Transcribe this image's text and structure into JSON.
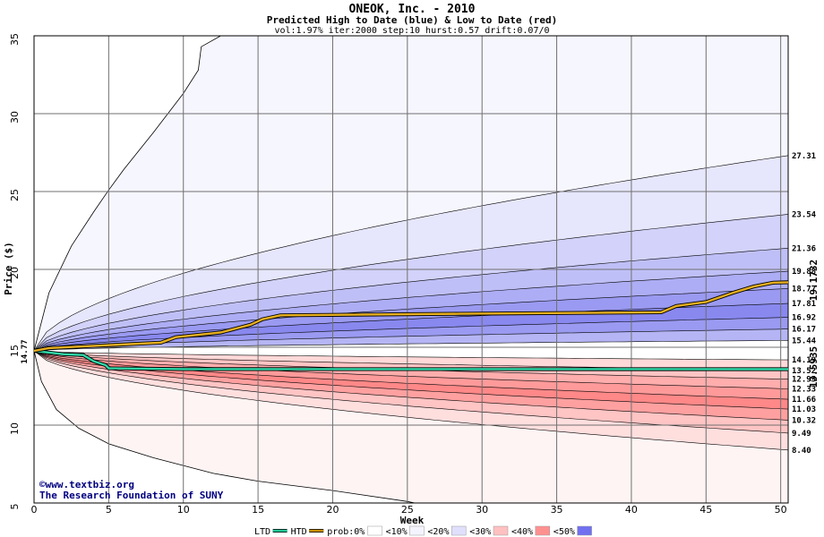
{
  "chart_data": {
    "type": "area",
    "title": "ONEOK, Inc. - 2010",
    "subtitle": "Predicted High to Date (blue) &  Low to Date (red)",
    "params": "vol:1.97% iter:2000 step:10 hurst:0.57 drift:0.07/0",
    "xlabel": "Week",
    "ylabel": "Price ($)",
    "xlim": [
      0,
      50.5
    ],
    "ylim": [
      5,
      35
    ],
    "x_ticks": [
      0,
      5,
      10,
      15,
      20,
      25,
      30,
      35,
      40,
      45,
      50
    ],
    "y_ticks": [
      5,
      10,
      15,
      20,
      25,
      30,
      35
    ],
    "grid": true,
    "start_price": 14.77,
    "start_label": "14.77",
    "htd_final": 19.1732,
    "htd_final_label": "19.1732",
    "ltd_final": 13.5935,
    "ltd_final_label": "13.5935",
    "end_week": 50.5,
    "upper_bands": [
      27.31,
      23.54,
      21.36,
      19.88,
      18.77,
      17.81,
      16.92,
      16.17,
      15.44
    ],
    "lower_bands": [
      14.19,
      13.52,
      12.95,
      12.33,
      11.66,
      11.03,
      10.32,
      9.49,
      8.4
    ],
    "band_labels": [
      "27.31",
      "23.54",
      "21.36",
      "19.88",
      "18.77",
      "17.81",
      "16.92",
      "16.17",
      "15.44",
      "14.19",
      "13.52",
      "12.95",
      "12.33",
      "11.66",
      "11.03",
      "10.32",
      "9.49",
      "8.40"
    ],
    "envelope_upper": [
      [
        0,
        14.77
      ],
      [
        1,
        18.5
      ],
      [
        2.5,
        21.5
      ],
      [
        4,
        23.7
      ],
      [
        5,
        25.1
      ],
      [
        6,
        26.4
      ],
      [
        8,
        28.8
      ],
      [
        10,
        31.3
      ],
      [
        11,
        32.8
      ],
      [
        11.2,
        34.3
      ],
      [
        12.5,
        35
      ]
    ],
    "envelope_lower": [
      [
        0,
        14.77
      ],
      [
        0.5,
        12.8
      ],
      [
        1.5,
        11
      ],
      [
        3,
        9.8
      ],
      [
        5,
        8.8
      ],
      [
        8,
        7.9
      ],
      [
        12,
        6.9
      ],
      [
        15,
        6.4
      ],
      [
        20,
        5.8
      ],
      [
        25,
        5.1
      ],
      [
        25.5,
        5
      ]
    ],
    "htd_path": [
      [
        0,
        14.77
      ],
      [
        1,
        14.95
      ],
      [
        8.5,
        15.3
      ],
      [
        9.5,
        15.65
      ],
      [
        12.5,
        15.95
      ],
      [
        14.5,
        16.45
      ],
      [
        15.3,
        16.8
      ],
      [
        16.5,
        17.05
      ],
      [
        28.5,
        17.15
      ],
      [
        42,
        17.25
      ],
      [
        43,
        17.65
      ],
      [
        45,
        17.9
      ],
      [
        46.8,
        18.5
      ],
      [
        48.2,
        18.9
      ],
      [
        49.5,
        19.15
      ],
      [
        50.5,
        19.1732
      ]
    ],
    "ltd_path": [
      [
        0,
        14.77
      ],
      [
        2,
        14.55
      ],
      [
        3.3,
        14.5
      ],
      [
        4,
        14.1
      ],
      [
        4.8,
        13.85
      ],
      [
        5,
        13.65
      ],
      [
        10,
        13.6
      ],
      [
        50.5,
        13.5935
      ]
    ],
    "legend": [
      {
        "label": "LTD",
        "color": "#20c898"
      },
      {
        "label": "HTD",
        "color": "#c89000"
      },
      {
        "label": "prob:0%",
        "color": "#ffffff"
      },
      {
        "label": "<10%",
        "color": "#f4f4ff"
      },
      {
        "label": "<20%",
        "color": "#e0e0fc"
      },
      {
        "label": "<30%",
        "color": "#ffc0c0"
      },
      {
        "label": "<40%",
        "color": "#ff9090"
      },
      {
        "label": "<50%",
        "color": "#7070f0"
      }
    ]
  },
  "credit": {
    "line1": "©www.textbiz.org",
    "line2": "The Research Foundation of SUNY"
  },
  "colors": {
    "htd": "#e8b020",
    "ltd": "#30d8a8",
    "htd_label": "#b08a00",
    "ltd_label": "#1a9a78",
    "start_label": "#207a20"
  }
}
